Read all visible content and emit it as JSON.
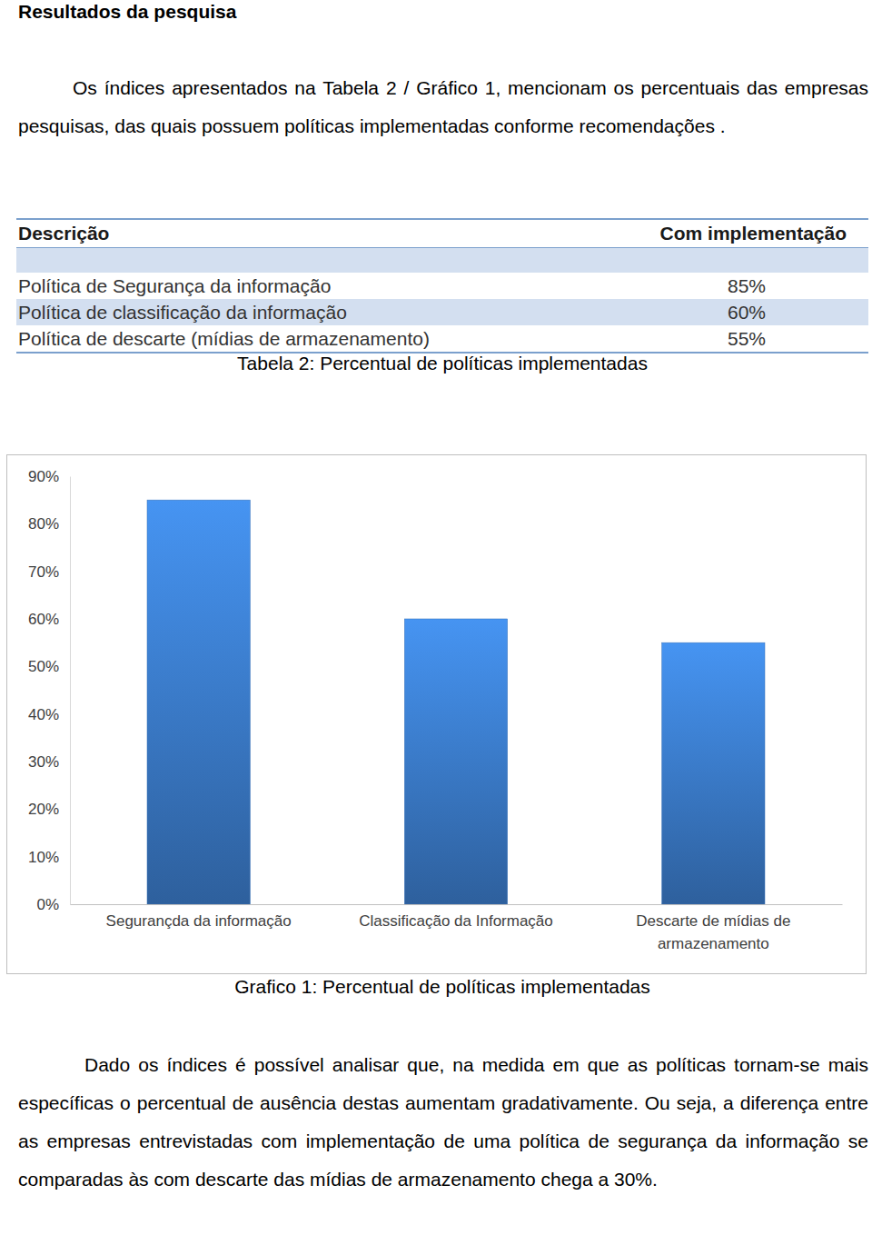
{
  "heading": "Resultados da pesquisa",
  "intro": "Os índices apresentados na Tabela 2 / Gráfico 1, mencionam os percentuais das empresas pesquisas, das quais possuem políticas implementadas conforme recomendações .",
  "table": {
    "columns": [
      "Descrição",
      "Com implementação"
    ],
    "rows": [
      [
        "Política de Segurança da informação",
        "85%"
      ],
      [
        "Política de classificação da informação",
        "60%"
      ],
      [
        "Política de descarte (mídias de armazenamento)",
        "55%"
      ]
    ],
    "caption": "Tabela 2: Percentual de políticas implementadas"
  },
  "chart_data": {
    "type": "bar",
    "categories": [
      "Segurançda da informação",
      "Classificação da Informação",
      "Descarte de mídias de armazenamento"
    ],
    "values": [
      85,
      60,
      55
    ],
    "color": "#3f85d9",
    "ylim": [
      0,
      90
    ],
    "yticks": [
      {
        "value": 0,
        "label": "0%"
      },
      {
        "value": 10,
        "label": "10%"
      },
      {
        "value": 20,
        "label": "20%"
      },
      {
        "value": 30,
        "label": "30%"
      },
      {
        "value": 40,
        "label": "40%"
      },
      {
        "value": 50,
        "label": "50%"
      },
      {
        "value": 60,
        "label": "60%"
      },
      {
        "value": 70,
        "label": "70%"
      },
      {
        "value": 80,
        "label": "80%"
      },
      {
        "value": 90,
        "label": "90%"
      }
    ],
    "grid": false
  },
  "chart_caption": "Grafico 1: Percentual de políticas implementadas",
  "analysis": "Dado os índices é possível analisar que, na medida em que as políticas tornam-se mais específicas o percentual de ausência destas aumentam gradativamente. Ou seja, a diferença entre as empresas entrevistadas com implementação de uma política de segurança da informação se comparadas às com descarte das mídias de armazenamento chega a 30%."
}
